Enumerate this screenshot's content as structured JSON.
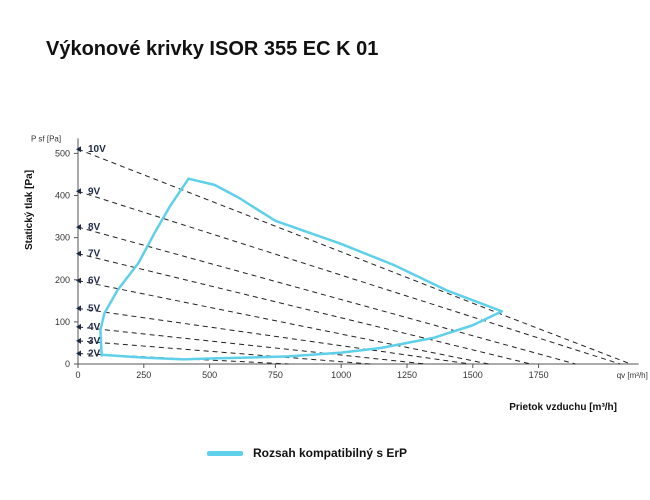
{
  "title": "Výkonové krivky ISOR 355 EC K 01",
  "chart_data": {
    "type": "line",
    "xlabel": "Prietok vzduchu [m³/h]",
    "ylabel": "Statický tlak [Pa]",
    "x_unit_label": "qv [m³/h]",
    "y_unit_label": "P sf [Pa]",
    "xlim": [
      0,
      2100
    ],
    "ylim": [
      0,
      500
    ],
    "x_ticks": [
      0,
      250,
      500,
      750,
      1000,
      1250,
      1500,
      1750
    ],
    "y_ticks": [
      0,
      100,
      200,
      300,
      400,
      500
    ],
    "grid": false,
    "voltage_curves": [
      {
        "name": "10V",
        "points": [
          [
            0,
            510
          ],
          [
            1600,
            120
          ],
          [
            2100,
            0
          ]
        ]
      },
      {
        "name": "9V",
        "points": [
          [
            0,
            410
          ],
          [
            2060,
            0
          ]
        ]
      },
      {
        "name": "8V",
        "points": [
          [
            0,
            325
          ],
          [
            1890,
            0
          ]
        ]
      },
      {
        "name": "7V",
        "points": [
          [
            0,
            262
          ],
          [
            1720,
            0
          ]
        ]
      },
      {
        "name": "6V",
        "points": [
          [
            0,
            198
          ],
          [
            1560,
            0
          ]
        ]
      },
      {
        "name": "5V",
        "points": [
          [
            0,
            132
          ],
          [
            1490,
            0
          ]
        ]
      },
      {
        "name": "4V",
        "points": [
          [
            0,
            88
          ],
          [
            1320,
            0
          ]
        ]
      },
      {
        "name": "3V",
        "points": [
          [
            0,
            55
          ],
          [
            1110,
            0
          ]
        ]
      },
      {
        "name": "2V",
        "points": [
          [
            0,
            25
          ],
          [
            800,
            0
          ]
        ]
      }
    ],
    "erp_range": {
      "name": "Rozsah kompatibilný s ErP",
      "color": "#5fd0ea",
      "points": [
        [
          90,
          20
        ],
        [
          85,
          80
        ],
        [
          100,
          120
        ],
        [
          150,
          175
        ],
        [
          230,
          240
        ],
        [
          290,
          310
        ],
        [
          350,
          375
        ],
        [
          420,
          440
        ],
        [
          520,
          425
        ],
        [
          610,
          395
        ],
        [
          750,
          340
        ],
        [
          1000,
          285
        ],
        [
          1200,
          235
        ],
        [
          1400,
          175
        ],
        [
          1610,
          125
        ],
        [
          1500,
          92
        ],
        [
          1350,
          62
        ],
        [
          1150,
          38
        ],
        [
          1000,
          27
        ],
        [
          800,
          18
        ],
        [
          500,
          13
        ],
        [
          400,
          11
        ],
        [
          250,
          15
        ],
        [
          90,
          22
        ]
      ]
    },
    "legend": {
      "position": "bottom-center",
      "label": "Rozsah kompatibilný s ErP"
    }
  }
}
